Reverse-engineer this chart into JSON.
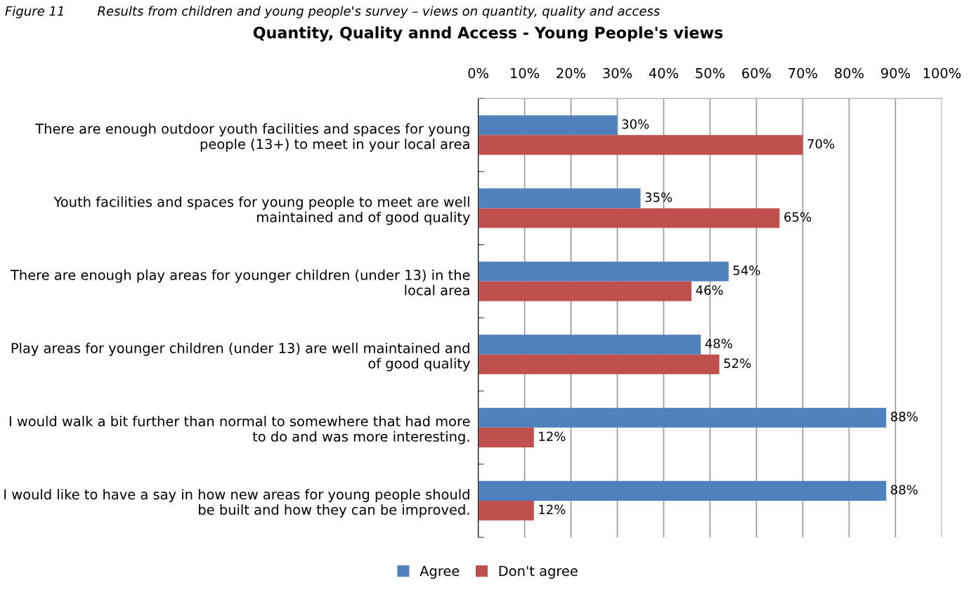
{
  "chart_data": {
    "type": "bar",
    "orientation": "horizontal",
    "title": "Quantity, Quality annd Access - Young People's views",
    "annotations": [
      "Figure 11        Results from children and young people's survey – views on quantity, quality and access"
    ],
    "categories": [
      "There are enough outdoor youth facilities and spaces for young people (13+) to meet in your local area",
      "Youth facilities and spaces for young people to meet are well maintained and of good quality",
      "There are enough play areas for younger children (under 13) in the local area",
      "Play areas for younger children (under 13) are well maintained and of good quality",
      "I would walk a bit further than normal to somewhere that had more to do and was more interesting.",
      "I would like to have a say in how new areas for young people should be built and how they can be improved."
    ],
    "series": [
      {
        "name": "Agree",
        "color": "#4f81bd",
        "values": [
          30,
          35,
          54,
          48,
          88,
          88
        ],
        "value_labels": [
          "30%",
          "35%",
          "54%",
          "48%",
          "88%",
          "88%"
        ]
      },
      {
        "name": "Don't agree",
        "color": "#c0504d",
        "values": [
          70,
          65,
          46,
          52,
          12,
          12
        ],
        "value_labels": [
          "70%",
          "65%",
          "46%",
          "52%",
          "12%",
          "12%"
        ]
      }
    ],
    "xlim": [
      0,
      100
    ],
    "xticks": [
      {
        "value": 0,
        "label": "0%"
      },
      {
        "value": 10,
        "label": "10%"
      },
      {
        "value": 20,
        "label": "20%"
      },
      {
        "value": 30,
        "label": "30%"
      },
      {
        "value": 40,
        "label": "40%"
      },
      {
        "value": 50,
        "label": "50%"
      },
      {
        "value": 60,
        "label": "60%"
      },
      {
        "value": 70,
        "label": "70%"
      },
      {
        "value": 80,
        "label": "80%"
      },
      {
        "value": 90,
        "label": "90%"
      },
      {
        "value": 100,
        "label": "100%"
      }
    ],
    "grid": "x",
    "legend": "bottom"
  }
}
